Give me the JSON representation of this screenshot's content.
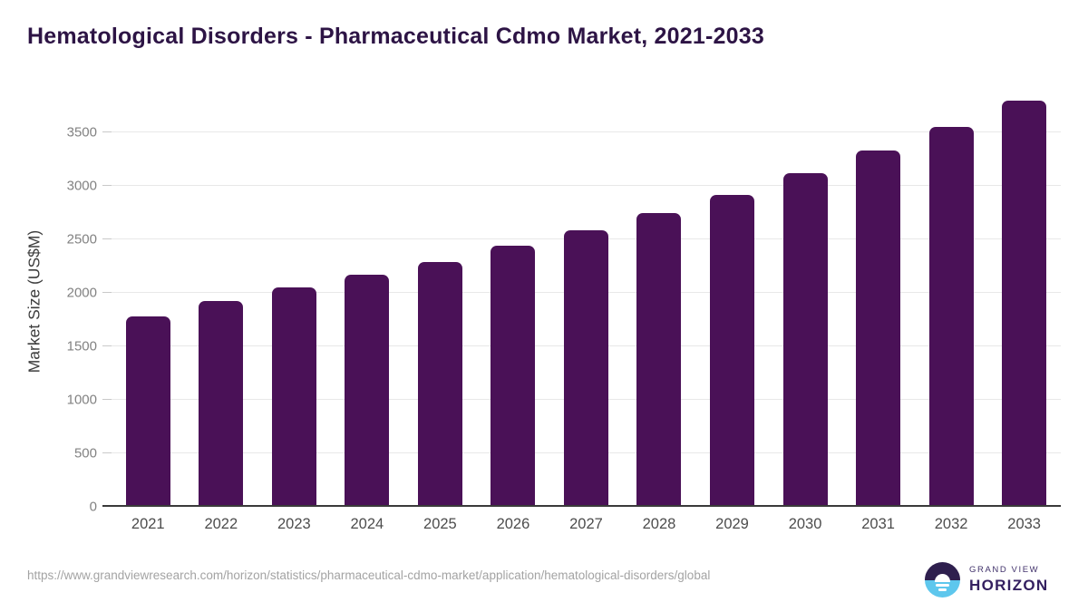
{
  "title": "Hematological Disorders - Pharmaceutical Cdmo Market, 2021-2033",
  "chart_data": {
    "type": "bar",
    "title": "Hematological Disorders - Pharmaceutical Cdmo Market, 2021-2033",
    "xlabel": "",
    "ylabel": "Market Size (US$M)",
    "categories": [
      "2021",
      "2022",
      "2023",
      "2024",
      "2025",
      "2026",
      "2027",
      "2028",
      "2029",
      "2030",
      "2031",
      "2032",
      "2033"
    ],
    "values": [
      1780,
      1925,
      2050,
      2170,
      2290,
      2440,
      2585,
      2745,
      2920,
      3120,
      3330,
      3555,
      3800
    ],
    "y_ticks": [
      0,
      500,
      1000,
      1500,
      2000,
      2500,
      3000,
      3500
    ],
    "ylim": [
      0,
      3900
    ],
    "grid": "horizontal",
    "legend": "none",
    "series_name": "Market Size (US$M)"
  },
  "colors": {
    "bar": "#4a1157",
    "title_text": "#2d1445",
    "axis_line": "#3a3a3a",
    "gridline": "#e8e8e8",
    "y_tick_label": "#828282",
    "x_tick_label": "#4d4d4d",
    "url_text": "#a3a3a3",
    "logo_dark": "#2e1f4e",
    "logo_blue": "#5ec7ed"
  },
  "footer": {
    "source_url": "https://www.grandviewresearch.com/horizon/statistics/pharmaceutical-cdmo-market/application/hematological-disorders/global",
    "logo": {
      "brand_top": "GRAND VIEW",
      "brand_bottom": "HORIZON"
    }
  }
}
